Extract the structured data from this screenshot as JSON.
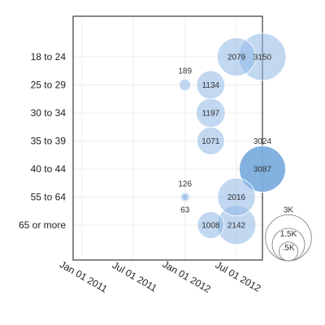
{
  "chart_data": {
    "type": "scatter",
    "subtype": "bubble",
    "title": "",
    "xlabel": "",
    "ylabel": "",
    "categories": [
      "18 to 24",
      "25 to 29",
      "30 to 34",
      "35 to 39",
      "40 to 44",
      "55 to 64",
      "65 or more"
    ],
    "x_ticks": [
      "Jan 01 2011",
      "Jul 01 2011",
      "Jan 01 2012",
      "Jul 01 2012"
    ],
    "xlim": [
      "2010-12-01",
      "2012-10-01"
    ],
    "grid": true,
    "color": "#8fb8e6",
    "highlight_color": "#5b9bd5",
    "points": [
      {
        "category": "18 to 24",
        "x": "2012-07-01",
        "value": 2079,
        "label": "2079"
      },
      {
        "category": "18 to 24",
        "x": "2012-10-01",
        "value": 3150,
        "label": "3150"
      },
      {
        "category": "25 to 29",
        "x": "2012-01-01",
        "value": 189,
        "label": "189",
        "label_pos": "above"
      },
      {
        "category": "25 to 29",
        "x": "2012-04-01",
        "value": 1134,
        "label": "1134"
      },
      {
        "category": "30 to 34",
        "x": "2012-04-01",
        "value": 1197,
        "label": "1197"
      },
      {
        "category": "35 to 39",
        "x": "2012-04-01",
        "value": 1071,
        "label": "1071"
      },
      {
        "category": "40 to 44",
        "x": "2012-10-01",
        "value": 3024,
        "label": "3024",
        "label_pos": "above"
      },
      {
        "category": "40 to 44",
        "x": "2012-10-01",
        "value": 3087,
        "label": "3087",
        "highlight": true
      },
      {
        "category": "55 to 64",
        "x": "2012-01-01",
        "value": 126,
        "label": "126",
        "label_pos": "above"
      },
      {
        "category": "55 to 64",
        "x": "2012-01-01",
        "value": 63,
        "label": "63",
        "label_pos": "below"
      },
      {
        "category": "55 to 64",
        "x": "2012-07-01",
        "value": 2016,
        "label": "2016"
      },
      {
        "category": "65 or more",
        "x": "2012-04-01",
        "value": 1008,
        "label": "1008"
      },
      {
        "category": "65 or more",
        "x": "2012-07-01",
        "value": 2142,
        "label": "2142"
      }
    ],
    "size_legend": [
      {
        "value": 3000,
        "label": "3K"
      },
      {
        "value": 1500,
        "label": "1.5K"
      },
      {
        "value": 500,
        "label": ".5K"
      }
    ],
    "size_max_value": 3150
  }
}
